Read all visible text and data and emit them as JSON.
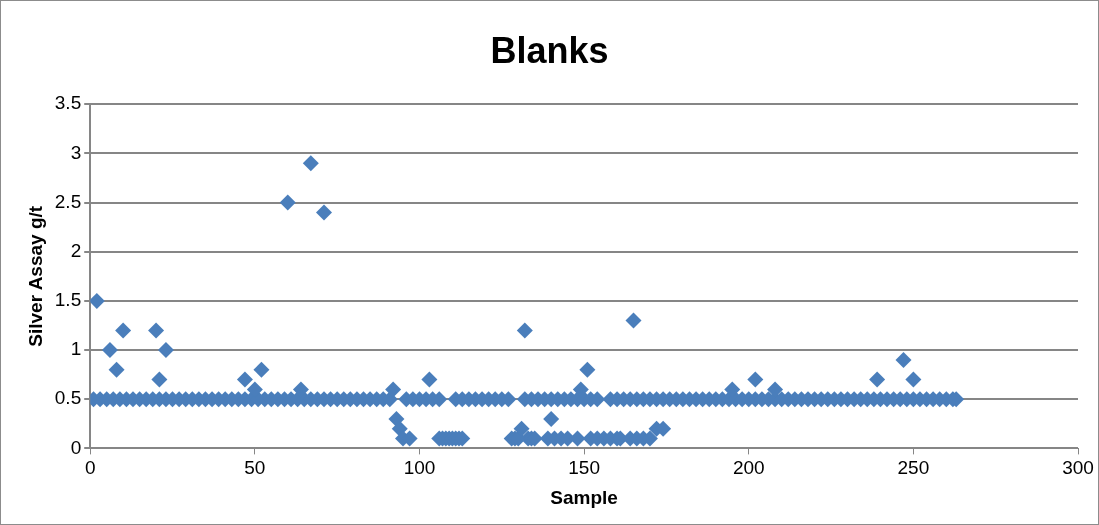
{
  "chart_data": {
    "type": "scatter",
    "title": "Blanks",
    "xlabel": "Sample",
    "ylabel": "Silver Assay g/t",
    "x": [
      1,
      3,
      5,
      7,
      9,
      11,
      13,
      15,
      17,
      19,
      21,
      23,
      25,
      27,
      29,
      31,
      33,
      35,
      37,
      39,
      41,
      43,
      45,
      47,
      49,
      51,
      53,
      55,
      57,
      59,
      61,
      63,
      65,
      67,
      69,
      71,
      73,
      75,
      77,
      79,
      81,
      83,
      85,
      87,
      89,
      91,
      96,
      98,
      100,
      102,
      104,
      106,
      111,
      113,
      115,
      117,
      119,
      121,
      123,
      125,
      127,
      132,
      134,
      136,
      138,
      140,
      142,
      144,
      146,
      148,
      150,
      152,
      154,
      158,
      160,
      162,
      164,
      166,
      168,
      170,
      172,
      174,
      176,
      178,
      180,
      182,
      184,
      186,
      188,
      190,
      192,
      194,
      196,
      198,
      200,
      202,
      204,
      206,
      208,
      210,
      212,
      214,
      216,
      218,
      220,
      222,
      224,
      226,
      228,
      230,
      232,
      234,
      236,
      238,
      240,
      242,
      244,
      246,
      248,
      250,
      252,
      254,
      256,
      258,
      260,
      262,
      263,
      2,
      6,
      8,
      10,
      20,
      21,
      23,
      47,
      50,
      52,
      60,
      64,
      67,
      71,
      92,
      93,
      94,
      95,
      97,
      103,
      106,
      107,
      108,
      109,
      110,
      111,
      112,
      113,
      128,
      129,
      130,
      131,
      132,
      133,
      134,
      135,
      139,
      140,
      141,
      143,
      145,
      148,
      149,
      151,
      152,
      154,
      156,
      158,
      160,
      161,
      164,
      165,
      166,
      168,
      170,
      172,
      174,
      195,
      202,
      208,
      239,
      247,
      250
    ],
    "values": [
      0.5,
      0.5,
      0.5,
      0.5,
      0.5,
      0.5,
      0.5,
      0.5,
      0.5,
      0.5,
      0.5,
      0.5,
      0.5,
      0.5,
      0.5,
      0.5,
      0.5,
      0.5,
      0.5,
      0.5,
      0.5,
      0.5,
      0.5,
      0.5,
      0.5,
      0.5,
      0.5,
      0.5,
      0.5,
      0.5,
      0.5,
      0.5,
      0.5,
      0.5,
      0.5,
      0.5,
      0.5,
      0.5,
      0.5,
      0.5,
      0.5,
      0.5,
      0.5,
      0.5,
      0.5,
      0.5,
      0.5,
      0.5,
      0.5,
      0.5,
      0.5,
      0.5,
      0.5,
      0.5,
      0.5,
      0.5,
      0.5,
      0.5,
      0.5,
      0.5,
      0.5,
      0.5,
      0.5,
      0.5,
      0.5,
      0.5,
      0.5,
      0.5,
      0.5,
      0.5,
      0.5,
      0.5,
      0.5,
      0.5,
      0.5,
      0.5,
      0.5,
      0.5,
      0.5,
      0.5,
      0.5,
      0.5,
      0.5,
      0.5,
      0.5,
      0.5,
      0.5,
      0.5,
      0.5,
      0.5,
      0.5,
      0.5,
      0.5,
      0.5,
      0.5,
      0.5,
      0.5,
      0.5,
      0.5,
      0.5,
      0.5,
      0.5,
      0.5,
      0.5,
      0.5,
      0.5,
      0.5,
      0.5,
      0.5,
      0.5,
      0.5,
      0.5,
      0.5,
      0.5,
      0.5,
      0.5,
      0.5,
      0.5,
      0.5,
      0.5,
      0.5,
      0.5,
      0.5,
      0.5,
      0.5,
      0.5,
      0.5,
      1.5,
      1,
      0.8,
      1.2,
      1.2,
      0.7,
      1,
      0.7,
      0.6,
      0.8,
      2.5,
      0.6,
      2.9,
      2.4,
      0.6,
      0.3,
      0.2,
      0.1,
      0.1,
      0.7,
      0.1,
      0.1,
      0.1,
      0.1,
      0.1,
      0.1,
      0.1,
      0.1,
      0.1,
      0.1,
      0.1,
      0.2,
      1.2,
      0.1,
      0.1,
      0.1,
      0.1,
      0.3,
      0.1,
      0.1,
      0.1,
      0.1,
      0.6,
      0.8,
      0.1,
      0.1,
      0.1,
      0.1,
      0.1,
      0.1,
      0.1,
      1.3,
      0.1,
      0.1,
      0.1,
      0.2,
      0.2,
      0.6,
      0.7,
      0.6,
      0.7,
      0.9,
      0.7
    ],
    "color": "#4a7ebb",
    "marker": "diamond",
    "xlim": [
      0,
      300
    ],
    "xticks": [
      0,
      50,
      100,
      150,
      200,
      250,
      300
    ],
    "ylim": [
      0,
      3.5
    ],
    "yticks": [
      0,
      0.5,
      1,
      1.5,
      2,
      2.5,
      3,
      3.5
    ],
    "grid": "y",
    "legend": false
  }
}
